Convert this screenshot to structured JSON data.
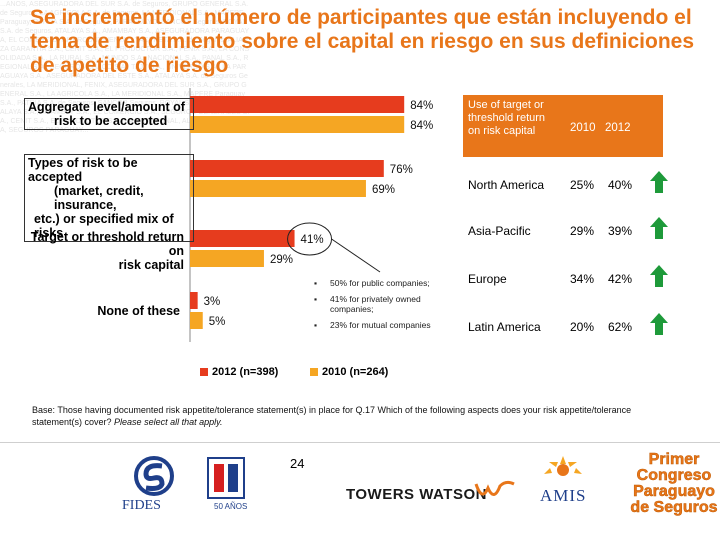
{
  "title": "Se incrementó el número de participantes que están incluyendo el tema de rendimiento sobre el capital en riesgo en sus definiciones de apetito de riesgo",
  "watermark_text": "...ANOS, ASEGURADORA DEL SUR S.A. de Seguros, GRUPO GENERAL S.A. de Seguros, LA AGRICOLA S.A. de Seguros, LA MERIDIONAL S.A., MAPFRE Paraguay, PATRIA S.A. de Seguros, PARAGUAYO, SANCOR Seguros, ROYAL S.A. de Seguros, ATALAYA S.A., AMAMBAY S.A., ASEGURADORA PARAGUAYA, EL COMERCIO, INTERCONTINENTAL, YACYRETA S.A. de Seguros, ALIANZA GARANTIA S.A., CENIT S.A., EL PRODUCTOR S.A., FENIX S.A., LA CONSOLIDADA S.A., LA RURAL S.A., MUNDO S.A., NACIONAL S.A., PANAL S.A., REGIONAL S.A., SEGUROS CHACO S.A., TAJY S.A., UNIVERSO S.A., LA PARAGUAYA S.A., ASEGURADORA DEL ESTE S.A., ATALAYA S.A. de Seguros Generales, LA MERIDIONAL, FENIX, ASEGURADORA DEL SUR S.A., GRUPO GENERAL S.A., LA AGRICOLA S.A., LA MERIDIONAL S.A., MAPFRE Paraguay S.A., PATRIA S.A. de Seguros, SANCOR Seguros, ROYAL S.A. de Seguros, ATALAYA S.A., AMAMBAY S.A., EL COMERCIO S.A., SEGUROS GENERALES S.A., CENIT S.A., EL PRODUCTOR S.A., LA MERIDIONAL, ALIANZA GARANTIA, SEGUROS PARAGUAY...",
  "chart_data": {
    "type": "bar",
    "orientation": "horizontal",
    "categories": [
      "Aggregate level/amount of risk to be accepted",
      "Types of risk to be accepted (market, credit, insurance, etc.) or specified mix of risks",
      "Target or threshold return on risk capital",
      "None of these"
    ],
    "category_labels": {
      "aggregate_line1": "Aggregate level/amount of",
      "aggregate_line2": "risk to be accepted",
      "types_line1": "Types of risk to be accepted",
      "types_line2": "(market, credit, insurance,",
      "types_line3": "etc.) or specified mix of risks",
      "target_line1": "Target or threshold return on",
      "target_line2": "risk capital",
      "none_line1": "None of these"
    },
    "series": [
      {
        "name": "2012 (n=398)",
        "color": "#e63c1e",
        "values": [
          84,
          76,
          41,
          3
        ]
      },
      {
        "name": "2010 (n=264)",
        "color": "#f5a623",
        "values": [
          84,
          69,
          29,
          5
        ]
      }
    ],
    "data_labels": {
      "2012": [
        "84%",
        "76%",
        "41%",
        "3%"
      ],
      "2010": [
        "84%",
        "69%",
        "29%",
        "5%"
      ]
    },
    "xlim": [
      0,
      100
    ],
    "legend_position": "bottom",
    "callout": [
      "50% for public companies;",
      "41% for privately owned companies;",
      "23% for mutual companies"
    ]
  },
  "table": {
    "header_label": "Use of target or threshold return on risk capital",
    "year1": "2010",
    "year2": "2012",
    "rows": [
      {
        "region": "North America",
        "v2010": "25%",
        "v2012": "40%"
      },
      {
        "region": "Asia-Pacific",
        "v2010": "29%",
        "v2012": "39%"
      },
      {
        "region": "Europe",
        "v2010": "34%",
        "v2012": "42%"
      },
      {
        "region": "Latin America",
        "v2010": "20%",
        "v2012": "62%"
      }
    ],
    "arrow_color": "#1e9a3a"
  },
  "base_note_main": "Base: Those having documented risk appetite/tolerance statement(s) in place for Q.17 Which of the following aspects does your risk appetite/tolerance statement(s) cover?",
  "base_note_italic": "Please select all that apply.",
  "page_number": "24",
  "logos": {
    "fides": "FIDES",
    "anos": "50 AÑOS",
    "towers_watson": "TOWERS WATSON",
    "amis": "AMIS",
    "congreso_line1": "Primer",
    "congreso_line2": "Congreso",
    "congreso_line3": "Paraguayo",
    "congreso_line4": "de Seguros"
  },
  "colors": {
    "title": "#e8761a",
    "series_2012": "#e63c1e",
    "series_2010": "#f5a623",
    "table_header": "#e8761a"
  }
}
